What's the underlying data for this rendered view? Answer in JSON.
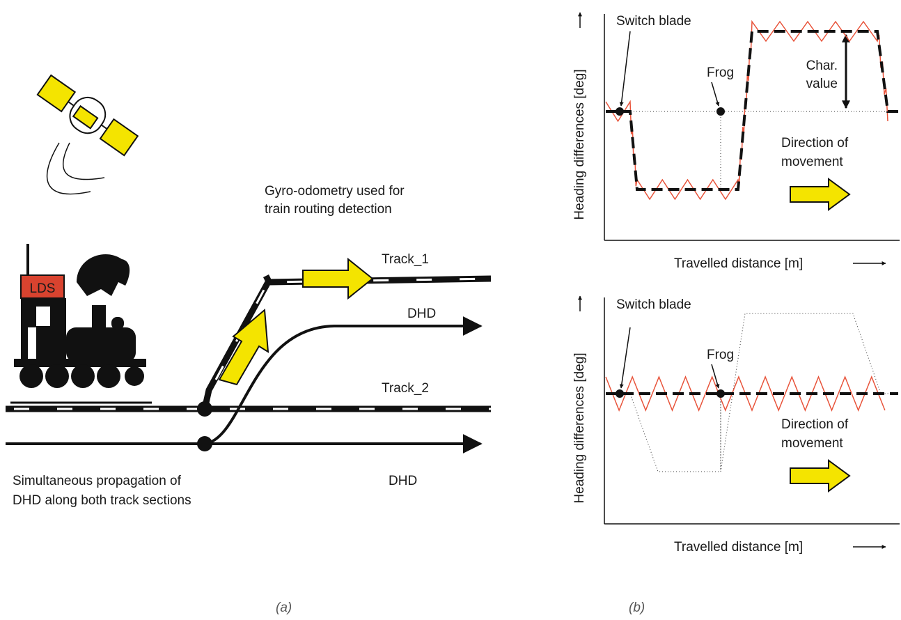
{
  "left": {
    "gyro_caption": [
      "Gyro-odometry used for",
      "train routing detection"
    ],
    "lds": "LDS",
    "track_1": "Track_1",
    "dhd_top": "DHD",
    "track_2": "Track_2",
    "dhd_bottom": "DHD",
    "bottom_caption": [
      "Simultaneous propagation of",
      "DHD along  both track sections"
    ],
    "panel_label": "(a)"
  },
  "right": {
    "panels": [
      {
        "y_axis": "Heading differences [deg]",
        "x_axis": "Travelled distance [m]",
        "switch_blade": "Switch blade",
        "frog": "Frog",
        "char_value": [
          "Char.",
          "value"
        ],
        "direction": [
          "Direction of",
          "movement"
        ]
      },
      {
        "y_axis": "Heading differences [deg]",
        "x_axis": "Travelled distance [m]",
        "switch_blade": "Switch blade",
        "frog": "Frog",
        "direction": [
          "Direction of",
          "movement"
        ]
      }
    ],
    "panel_label": "(b)"
  }
}
